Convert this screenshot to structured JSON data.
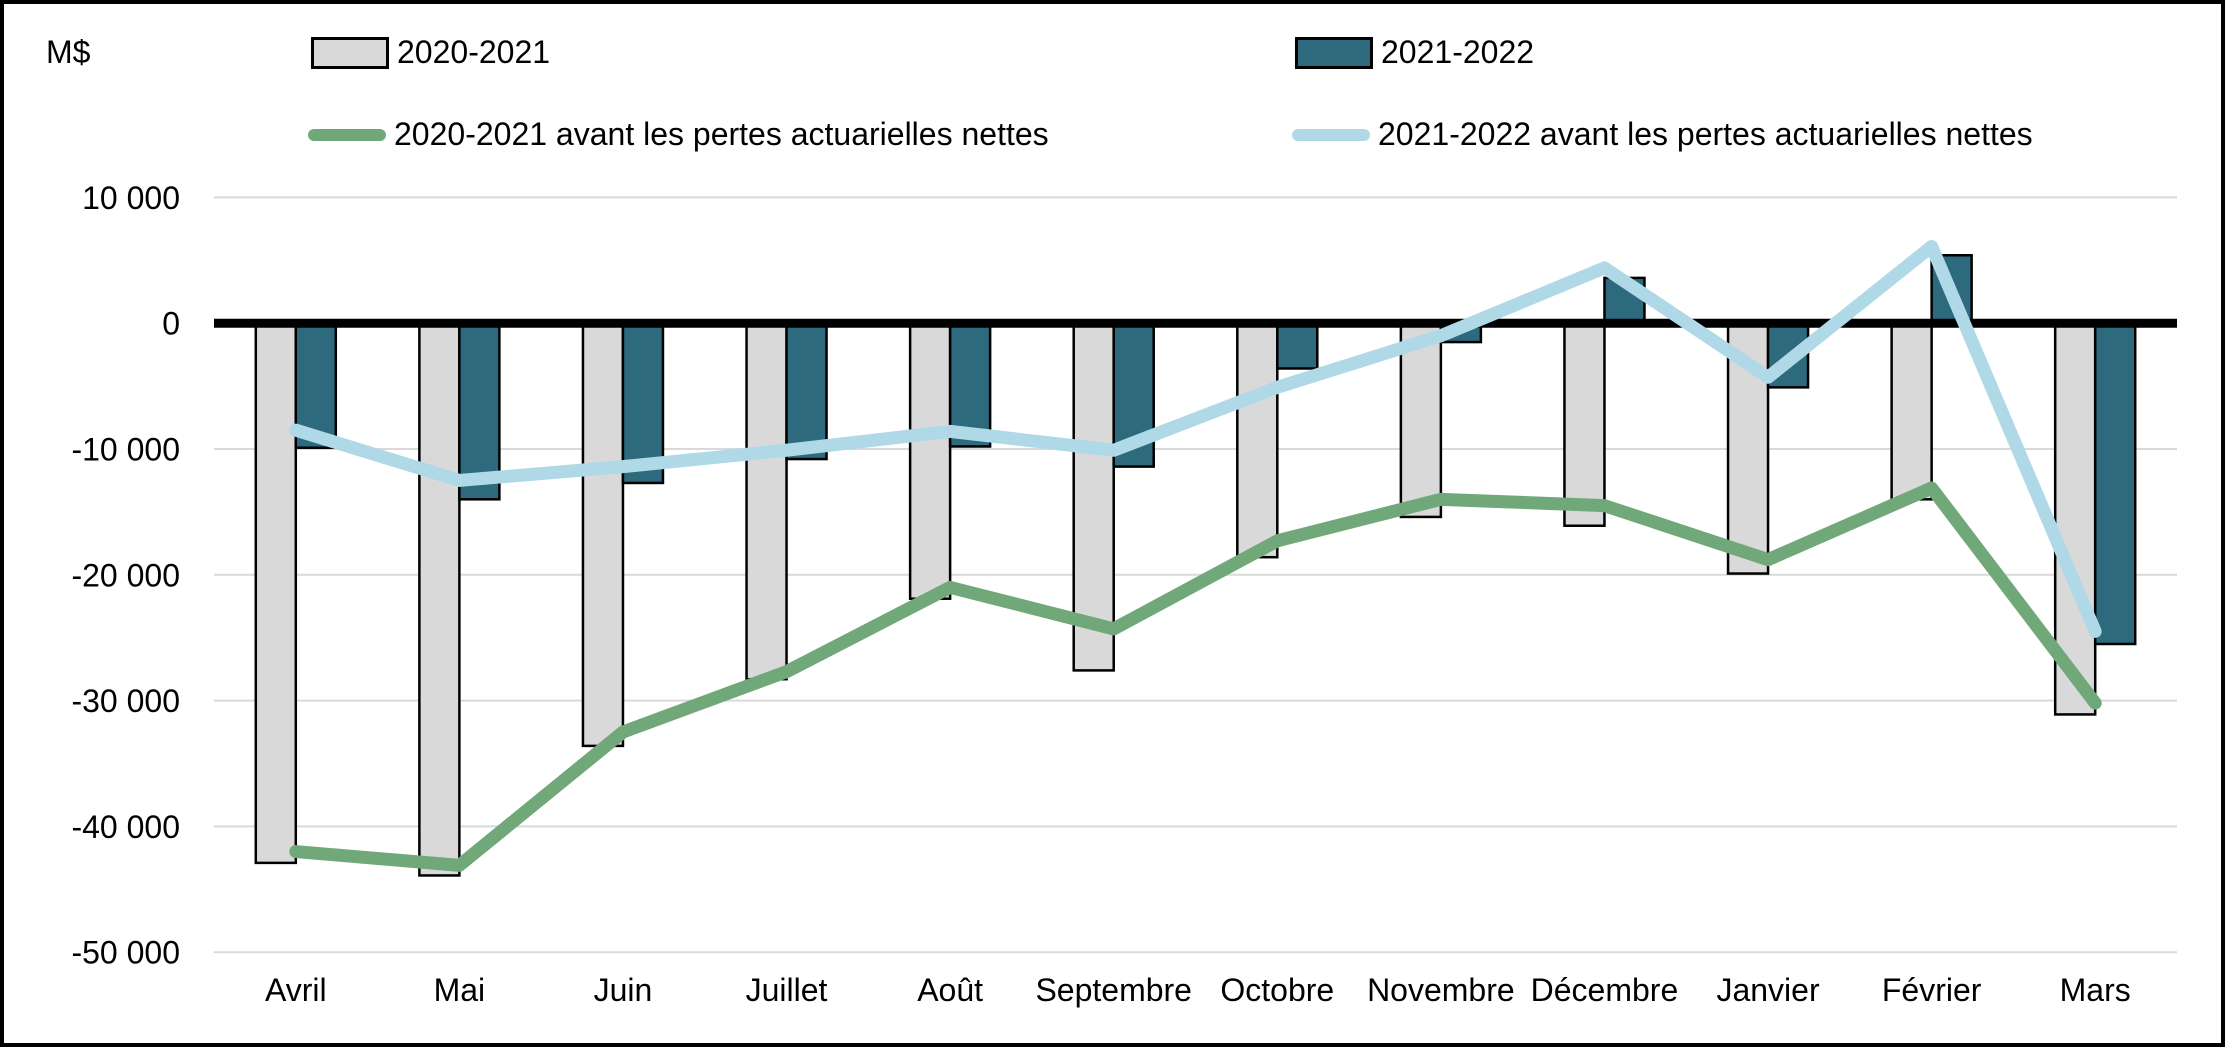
{
  "unit_label": "M$",
  "legend": {
    "bar_2020_label": "2020-2021",
    "bar_2021_label": "2021-2022",
    "line_2020_label": "2020-2021 avant les pertes actuarielles nettes",
    "line_2021_label": "2021-2022 avant les pertes actuarielles nettes"
  },
  "colors": {
    "bar_2020": "#d9d9d9",
    "bar_2021": "#2d6a7e",
    "line_2020": "#70a87a",
    "line_2021": "#afd9e7",
    "bar_border": "#000000",
    "gridline": "#d9d9d9",
    "zero_line": "#000000"
  },
  "chart_data": {
    "type": "bar",
    "title": "",
    "ylabel": "M$",
    "xlabel": "",
    "grid": true,
    "legend_position": "top",
    "ylim": [
      -50000,
      10000
    ],
    "ytick_step": 10000,
    "ytick_values": [
      10000,
      0,
      -10000,
      -20000,
      -30000,
      -40000,
      -50000
    ],
    "ytick_labels": [
      "10 000",
      "0",
      "-10 000",
      "-20 000",
      "-30 000",
      "-40 000",
      "-50 000"
    ],
    "categories": [
      "Avril",
      "Mai",
      "Juin",
      "Juillet",
      "Août",
      "Septembre",
      "Octobre",
      "Novembre",
      "Décembre",
      "Janvier",
      "Février",
      "Mars"
    ],
    "series": [
      {
        "name": "2020-2021",
        "type": "bar",
        "color": "#d9d9d9",
        "values": [
          -42900,
          -43900,
          -33600,
          -28300,
          -21900,
          -27600,
          -18600,
          -15400,
          -16100,
          -19900,
          -14000,
          -31100
        ]
      },
      {
        "name": "2021-2022",
        "type": "bar",
        "color": "#2d6a7e",
        "values": [
          -9900,
          -14000,
          -12700,
          -10800,
          -9800,
          -11400,
          -3600,
          -1500,
          3600,
          -5100,
          5400,
          -25500
        ]
      },
      {
        "name": "2020-2021 avant les pertes actuarielles nettes",
        "type": "line",
        "color": "#70a87a",
        "values": [
          -42000,
          -43100,
          -32500,
          -27700,
          -21000,
          -24300,
          -17300,
          -14000,
          -14500,
          -18800,
          -13100,
          -30200
        ]
      },
      {
        "name": "2021-2022 avant les pertes actuarielles nettes",
        "type": "line",
        "color": "#afd9e7",
        "values": [
          -8500,
          -12500,
          -11400,
          -10100,
          -8600,
          -10100,
          -5100,
          -1000,
          4400,
          -4300,
          6100,
          -24500
        ]
      }
    ]
  }
}
